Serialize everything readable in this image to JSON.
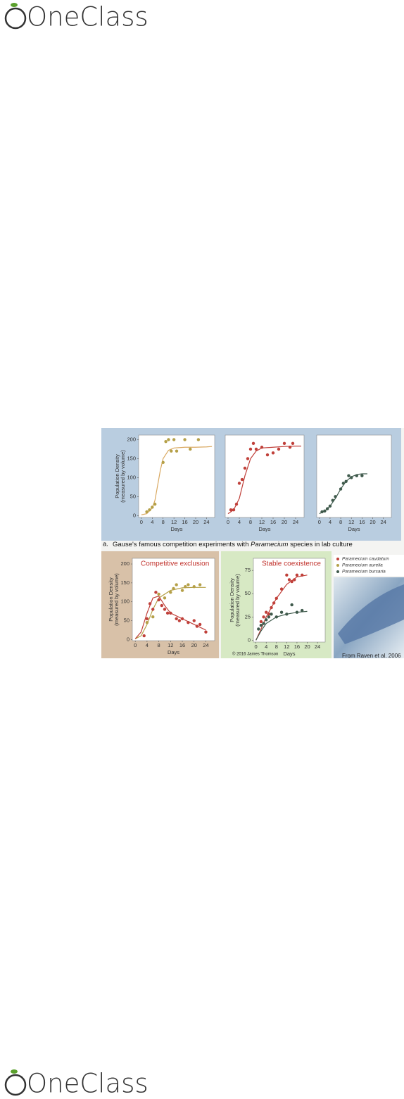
{
  "header": {
    "logo": "OneClass"
  },
  "footer": {
    "logo": "OneClass"
  },
  "figure": {
    "caption_marker": "a.",
    "caption": [
      "Gause's famous competition experiments with ",
      "Paramecium",
      " species in lab culture"
    ],
    "copyright": "© 2016 James Thomson",
    "credit": "From Raven et al. 2006",
    "legend": [
      {
        "name": "Paramecium caudatum",
        "color": "#c0403a"
      },
      {
        "name": "Paramecium aurelia",
        "color": "#b5a048"
      },
      {
        "name": "Paramecium bursaria",
        "color": "#3f5a4c"
      }
    ],
    "panels": [
      {
        "type": "scatter",
        "xlabel": "Days",
        "ylabel": [
          "Population Density",
          "(measured by volume)"
        ],
        "xlim": [
          -1,
          27
        ],
        "ylim": [
          -5,
          212
        ],
        "xticks": [
          0,
          4,
          8,
          12,
          16,
          20,
          24
        ],
        "yticks": [
          0,
          50,
          100,
          150,
          200
        ],
        "series": [
          {
            "color": "#b5a048",
            "line_color": "#d9a860",
            "x": [
              2,
              3,
              4,
              5,
              8,
              9,
              10,
              11,
              12,
              13,
              16,
              18,
              21
            ],
            "values": [
              10,
              15,
              22,
              30,
              140,
              195,
              200,
              170,
              200,
              170,
              200,
              175,
              200
            ],
            "fit_x": [
              0,
              2,
              4,
              5,
              6,
              7,
              8,
              10,
              12,
              16,
              20,
              24,
              26
            ],
            "fit_values": [
              2,
              5,
              20,
              40,
              80,
              120,
              150,
              172,
              178,
              180,
              180,
              181,
              182
            ]
          }
        ]
      },
      {
        "type": "scatter",
        "xlabel": "Days",
        "xlim": [
          -1,
          27
        ],
        "ylim": [
          -5,
          212
        ],
        "xticks": [
          0,
          4,
          8,
          12,
          16,
          20,
          24
        ],
        "series": [
          {
            "color": "#c0403a",
            "line_color": "#c0403a",
            "x": [
              1,
              2,
              3,
              4,
              5,
              6,
              7,
              8,
              9,
              10,
              12,
              14,
              16,
              18,
              20,
              22,
              23
            ],
            "values": [
              15,
              15,
              30,
              85,
              95,
              125,
              150,
              175,
              190,
              175,
              180,
              160,
              165,
              175,
              190,
              180,
              190
            ],
            "fit_x": [
              0,
              2,
              4,
              6,
              8,
              10,
              12,
              16,
              20,
              24,
              26
            ],
            "fit_values": [
              5,
              15,
              45,
              105,
              150,
              170,
              178,
              180,
              182,
              183,
              183
            ]
          }
        ]
      },
      {
        "type": "scatter",
        "xlabel": "Days",
        "xlim": [
          -1,
          27
        ],
        "ylim": [
          -5,
          212
        ],
        "xticks": [
          0,
          4,
          8,
          12,
          16,
          20,
          24
        ],
        "series": [
          {
            "color": "#3f5a4c",
            "line_color": "#3f5a4c",
            "x": [
              1,
              2,
              3,
              4,
              5,
              6,
              8,
              9,
              10,
              11,
              12,
              14,
              16
            ],
            "values": [
              10,
              12,
              18,
              25,
              40,
              50,
              70,
              85,
              90,
              105,
              100,
              105,
              105
            ],
            "fit_x": [
              0,
              2,
              4,
              6,
              8,
              10,
              12,
              14,
              16,
              18
            ],
            "fit_values": [
              5,
              12,
              25,
              45,
              70,
              90,
              102,
              108,
              110,
              110
            ]
          }
        ]
      },
      {
        "type": "scatter",
        "title": "Competitive exclusion",
        "xlabel": "Days",
        "ylabel": [
          "Population Density",
          "(measured by volume)"
        ],
        "xlim": [
          -1,
          27
        ],
        "ylim": [
          -3,
          215
        ],
        "xticks": [
          0,
          4,
          8,
          12,
          16,
          20,
          24
        ],
        "yticks": [
          0,
          50,
          100,
          150,
          200
        ],
        "series": [
          {
            "color": "#b5a048",
            "line_color": "#b5a048",
            "x": [
              4,
              6,
              8,
              10,
              12,
              13,
              14,
              16,
              17,
              18,
              20,
              22
            ],
            "values": [
              45,
              60,
              120,
              110,
              125,
              135,
              145,
              130,
              140,
              145,
              140,
              145
            ],
            "fit_x": [
              0,
              2,
              4,
              6,
              8,
              12,
              16,
              20,
              24
            ],
            "fit_values": [
              2,
              10,
              40,
              80,
              110,
              130,
              137,
              138,
              138
            ]
          },
          {
            "color": "#c0403a",
            "line_color": "#c0403a",
            "x": [
              3,
              4,
              5,
              6,
              7,
              8,
              9,
              10,
              11,
              12,
              14,
              15,
              16,
              18,
              20,
              21,
              22,
              24
            ],
            "values": [
              10,
              55,
              95,
              80,
              125,
              105,
              90,
              80,
              70,
              70,
              55,
              50,
              55,
              45,
              50,
              35,
              40,
              20
            ],
            "fit_x": [
              0,
              2,
              4,
              6,
              8,
              10,
              12,
              16,
              20,
              24
            ],
            "fit_values": [
              2,
              20,
              70,
              110,
              115,
              90,
              70,
              55,
              40,
              25
            ]
          }
        ]
      },
      {
        "type": "scatter",
        "title": "Stable coexistence",
        "xlabel": "Days",
        "ylabel": [
          "Population Density",
          "(measured by volume)"
        ],
        "xlim": [
          -1,
          27
        ],
        "ylim": [
          -2,
          88
        ],
        "xticks": [
          0,
          4,
          8,
          12,
          16,
          20,
          24
        ],
        "yticks": [
          0,
          25,
          50,
          75
        ],
        "series": [
          {
            "color": "#c0403a",
            "line_color": "#c0403a",
            "x": [
              2,
              3,
              4,
              5,
              6,
              7,
              8,
              10,
              12,
              13,
              14,
              15,
              16,
              18
            ],
            "values": [
              20,
              25,
              30,
              28,
              35,
              40,
              45,
              55,
              70,
              65,
              63,
              65,
              70,
              70
            ],
            "fit_x": [
              0,
              2,
              4,
              8,
              12,
              16,
              20
            ],
            "fit_values": [
              0,
              12,
              25,
              45,
              60,
              68,
              70
            ]
          },
          {
            "color": "#3f5a4c",
            "line_color": "#3f5a4c",
            "x": [
              1,
              2,
              3,
              4,
              5,
              6,
              8,
              10,
              12,
              14,
              16,
              18
            ],
            "values": [
              12,
              16,
              18,
              22,
              25,
              28,
              25,
              30,
              28,
              38,
              30,
              32
            ],
            "fit_x": [
              0,
              2,
              4,
              8,
              12,
              16,
              20
            ],
            "fit_values": [
              0,
              10,
              18,
              25,
              28,
              30,
              31
            ]
          }
        ]
      }
    ]
  }
}
